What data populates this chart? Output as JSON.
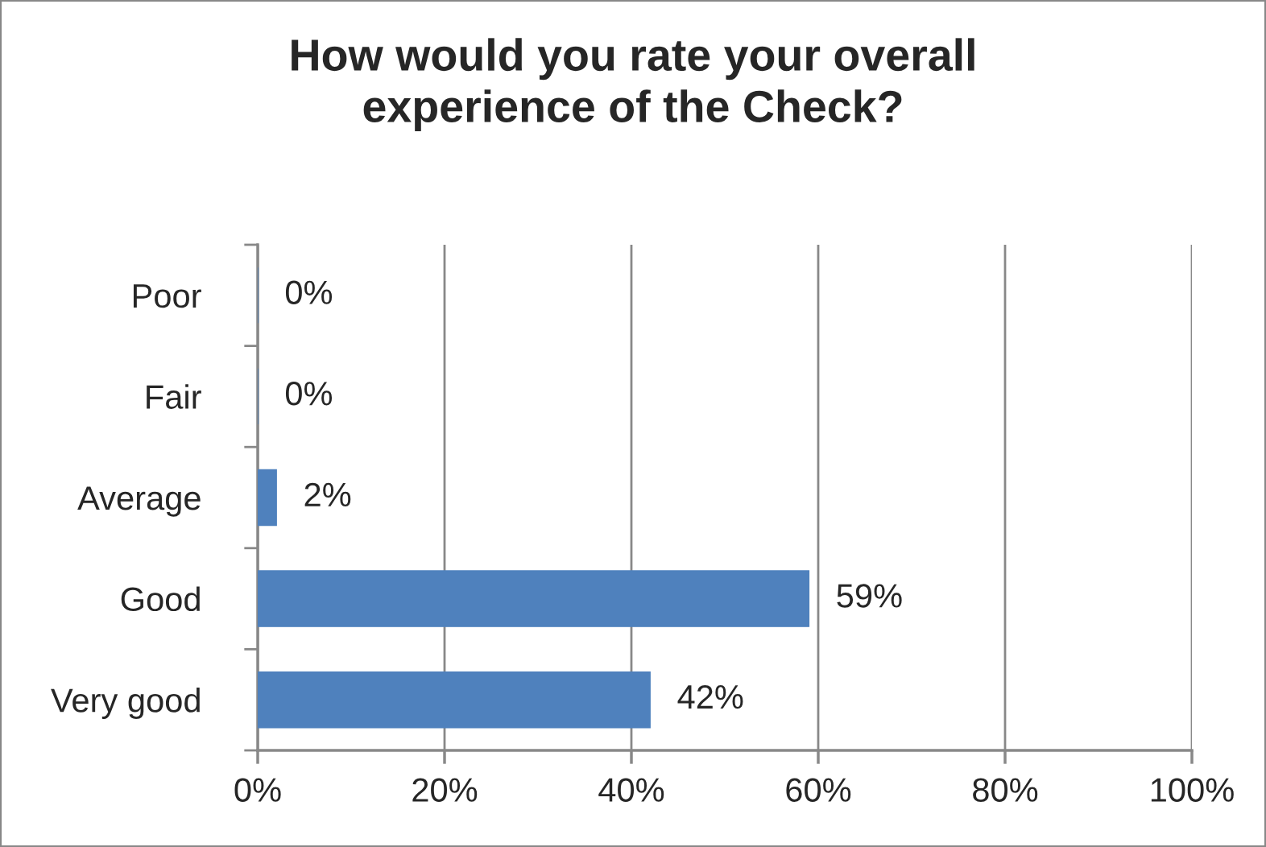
{
  "chart_data": {
    "type": "bar",
    "orientation": "horizontal",
    "title": "How would you rate your overall\nexperience of the Check?",
    "categories": [
      "Poor",
      "Fair",
      "Average",
      "Good",
      "Very good"
    ],
    "values": [
      0,
      0,
      2,
      59,
      42
    ],
    "value_labels": [
      "0%",
      "0%",
      "2%",
      "59%",
      "42%"
    ],
    "color": "#4f81bd",
    "xlim": [
      0,
      100
    ],
    "xticks": [
      {
        "value": 0,
        "label": "0%"
      },
      {
        "value": 20,
        "label": "20%"
      },
      {
        "value": 40,
        "label": "40%"
      },
      {
        "value": 60,
        "label": "60%"
      },
      {
        "value": 80,
        "label": "80%"
      },
      {
        "value": 100,
        "label": "100%"
      }
    ],
    "grid": "x",
    "legend": false
  }
}
